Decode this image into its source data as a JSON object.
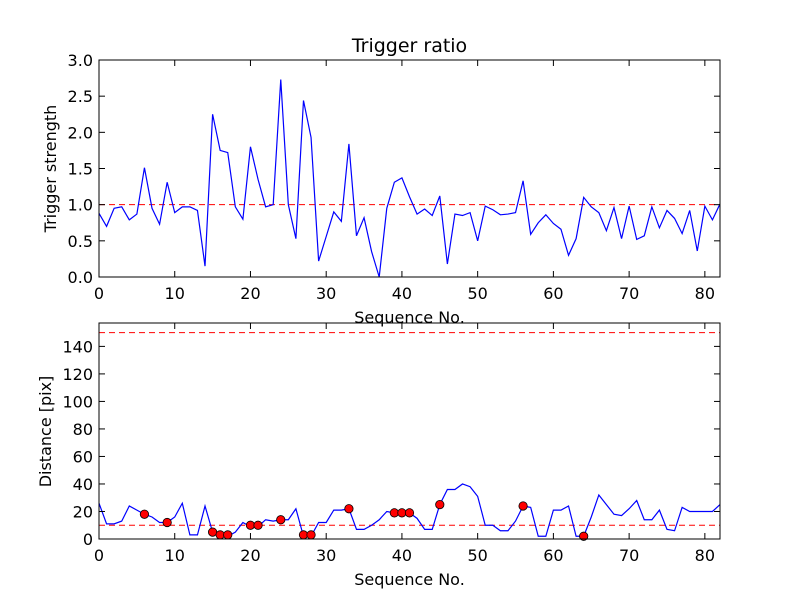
{
  "chart_data": [
    {
      "type": "line",
      "title": "Trigger ratio",
      "xlabel": "Sequence No.",
      "ylabel": "Trigger strength",
      "xlim": [
        0,
        82
      ],
      "ylim": [
        0,
        3.0
      ],
      "xticks": [
        0,
        10,
        20,
        30,
        40,
        50,
        60,
        70,
        80
      ],
      "yticks": [
        0.0,
        0.5,
        1.0,
        1.5,
        2.0,
        2.5,
        3.0
      ],
      "ytick_labels": [
        "0.0",
        "0.5",
        "1.0",
        "1.5",
        "2.0",
        "2.5",
        "3.0"
      ],
      "line_color": "#0000ff",
      "threshold_color": "#ff0000",
      "thresholds": [
        1.0
      ],
      "series": [
        {
          "name": "trigger strength",
          "values": [
            0.88,
            0.7,
            0.95,
            0.97,
            0.79,
            0.87,
            1.51,
            0.95,
            0.73,
            1.31,
            0.89,
            0.97,
            0.97,
            0.92,
            0.15,
            2.25,
            1.75,
            1.72,
            0.97,
            0.8,
            1.8,
            1.35,
            0.97,
            1.0,
            2.73,
            1.0,
            0.53,
            2.44,
            1.93,
            0.22,
            0.56,
            0.9,
            0.77,
            1.84,
            0.57,
            0.82,
            0.35,
            0.0,
            0.95,
            1.31,
            1.37,
            1.11,
            0.87,
            0.94,
            0.85,
            1.12,
            0.18,
            0.87,
            0.85,
            0.89,
            0.5,
            0.98,
            0.93,
            0.86,
            0.87,
            0.89,
            1.33,
            0.59,
            0.75,
            0.86,
            0.74,
            0.66,
            0.3,
            0.53,
            1.1,
            0.97,
            0.89,
            0.64,
            0.96,
            0.53,
            0.98,
            0.52,
            0.57,
            0.97,
            0.68,
            0.92,
            0.81,
            0.6,
            0.92,
            0.36,
            0.98,
            0.79,
            1.01
          ]
        }
      ]
    },
    {
      "type": "line",
      "title": "",
      "xlabel": "Sequence No.",
      "ylabel": "Distance [pix]",
      "xlim": [
        0,
        82
      ],
      "ylim": [
        0,
        157
      ],
      "xticks": [
        0,
        10,
        20,
        30,
        40,
        50,
        60,
        70,
        80
      ],
      "yticks": [
        0,
        20,
        40,
        60,
        80,
        100,
        120,
        140
      ],
      "ytick_labels": [
        "0",
        "20",
        "40",
        "60",
        "80",
        "100",
        "120",
        "140"
      ],
      "line_color": "#0000ff",
      "threshold_color": "#ff0000",
      "marker_color": "#ff0000",
      "thresholds": [
        10,
        150
      ],
      "series": [
        {
          "name": "distance",
          "values": [
            26,
            11,
            11,
            13,
            24,
            21,
            18,
            16,
            12,
            12,
            16,
            26,
            3,
            3,
            24,
            5,
            2,
            2,
            5,
            12,
            9,
            9,
            14,
            13,
            14,
            14,
            22,
            2,
            2,
            12,
            12,
            21,
            21,
            22,
            7,
            7,
            10,
            14,
            20,
            19,
            19,
            19,
            15,
            7,
            7,
            25,
            36,
            36,
            40,
            38,
            31,
            10,
            10,
            6,
            6,
            13,
            24,
            23,
            2,
            2,
            21,
            21,
            24,
            2,
            2,
            16,
            32,
            25,
            18,
            17,
            22,
            28,
            14,
            14,
            21,
            7,
            6,
            23,
            20,
            20,
            20,
            20,
            25
          ]
        }
      ],
      "markers": {
        "x": [
          6,
          9,
          15,
          16,
          17,
          20,
          21,
          24,
          27,
          28,
          33,
          39,
          40,
          41,
          45,
          56,
          64
        ],
        "y": [
          18,
          12,
          5,
          3,
          3,
          10,
          10,
          14,
          3,
          3,
          22,
          19,
          19,
          19,
          25,
          24,
          2
        ]
      }
    }
  ]
}
